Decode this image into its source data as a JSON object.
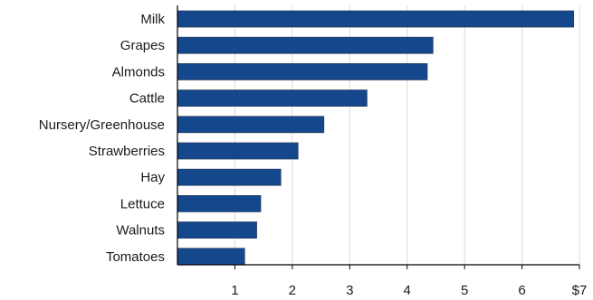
{
  "chart_data": {
    "type": "bar",
    "orientation": "horizontal",
    "categories": [
      "Milk",
      "Grapes",
      "Almonds",
      "Cattle",
      "Nursery/Greenhouse",
      "Strawberries",
      "Hay",
      "Lettuce",
      "Walnuts",
      "Tomatoes"
    ],
    "values": [
      6.9,
      4.45,
      4.35,
      3.3,
      2.55,
      2.1,
      1.8,
      1.45,
      1.38,
      1.17
    ],
    "x_ticks": [
      1,
      2,
      3,
      4,
      5,
      6,
      7
    ],
    "x_tick_labels": [
      "1",
      "2",
      "3",
      "4",
      "5",
      "6",
      "$7"
    ],
    "xlim": [
      0,
      7
    ],
    "title": "",
    "xlabel": "",
    "ylabel": "",
    "grid": "vertical",
    "legend": "none",
    "bar_color": "#15478c"
  }
}
